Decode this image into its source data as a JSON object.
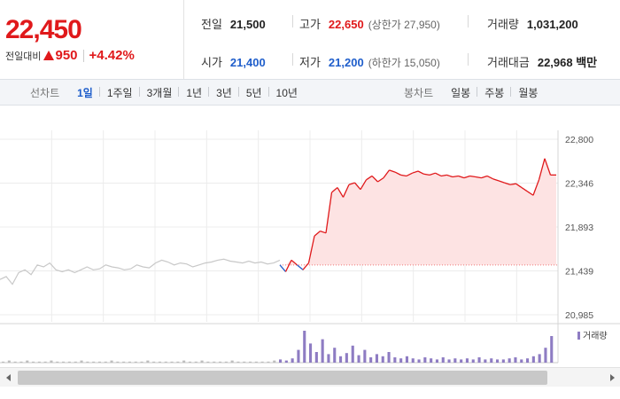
{
  "quote": {
    "current_price": "22,450",
    "change_label": "전일대비",
    "change_value": "950",
    "change_rate": "+4.42%"
  },
  "stats": {
    "prev_close": {
      "label": "전일",
      "value": "21,500"
    },
    "high": {
      "label": "고가",
      "value": "22,650",
      "sub": "(상한가 27,950)"
    },
    "volume": {
      "label": "거래량",
      "value": "1,031,200"
    },
    "open": {
      "label": "시가",
      "value": "21,400"
    },
    "low": {
      "label": "저가",
      "value": "21,200",
      "sub": "(하한가 15,050)"
    },
    "trade_amount": {
      "label": "거래대금",
      "value": "22,968 백만"
    }
  },
  "line_tabs": {
    "head": "선차트",
    "items": [
      "1일",
      "1주일",
      "3개월",
      "1년",
      "3년",
      "5년",
      "10년"
    ],
    "active": "1일"
  },
  "candle_tabs": {
    "head": "봉차트",
    "items": [
      "일봉",
      "주봉",
      "월봉"
    ]
  },
  "colors": {
    "up": "#e0191b",
    "down": "#1f5ecb",
    "prev_day_line": "#c8c8c8",
    "fill": "#fde3e3",
    "volume": "#8e7cc3"
  },
  "chart_data": {
    "type": "line",
    "y_ticks": [
      "22,800",
      "22,346",
      "21,893",
      "21,439",
      "20,985"
    ],
    "ylim": [
      20985,
      22800
    ],
    "base_price": 21500,
    "grid": true,
    "volume_legend": "거래량",
    "prev_day_series": [
      21350,
      21380,
      21300,
      21420,
      21450,
      21400,
      21500,
      21480,
      21520,
      21450,
      21430,
      21450,
      21420,
      21450,
      21480,
      21450,
      21460,
      21500,
      21480,
      21470,
      21450,
      21460,
      21500,
      21480,
      21470,
      21520,
      21550,
      21530,
      21500,
      21520,
      21510,
      21480,
      21500,
      21520,
      21530,
      21550,
      21560,
      21540,
      21530,
      21520,
      21540,
      21520,
      21530,
      21510,
      21520,
      21550
    ],
    "today_series": [
      21500,
      21430,
      21550,
      21500,
      21450,
      21520,
      21800,
      21850,
      21830,
      22250,
      22300,
      22200,
      22330,
      22350,
      22280,
      22380,
      22420,
      22360,
      22400,
      22480,
      22460,
      22430,
      22420,
      22450,
      22470,
      22440,
      22430,
      22450,
      22420,
      22430,
      22410,
      22420,
      22400,
      22420,
      22410,
      22400,
      22420,
      22390,
      22370,
      22350,
      22330,
      22340,
      22300,
      22260,
      22220,
      22380,
      22600,
      22430,
      22430
    ],
    "volume_series": [
      1,
      2,
      1,
      1,
      2,
      1,
      1,
      1,
      2,
      1,
      1,
      1,
      1,
      2,
      1,
      1,
      1,
      1,
      2,
      1,
      1,
      1,
      1,
      1,
      2,
      1,
      1,
      1,
      1,
      1,
      2,
      1,
      1,
      2,
      1,
      1,
      1,
      1,
      2,
      1,
      1,
      1,
      1,
      1,
      1,
      2,
      3,
      2,
      4,
      12,
      30,
      18,
      10,
      22,
      8,
      14,
      6,
      9,
      16,
      7,
      12,
      5,
      8,
      6,
      10,
      5,
      4,
      6,
      4,
      3,
      5,
      4,
      3,
      5,
      3,
      4,
      3,
      4,
      3,
      5,
      3,
      4,
      3,
      3,
      4,
      5,
      3,
      4,
      6,
      8,
      14,
      25
    ]
  }
}
